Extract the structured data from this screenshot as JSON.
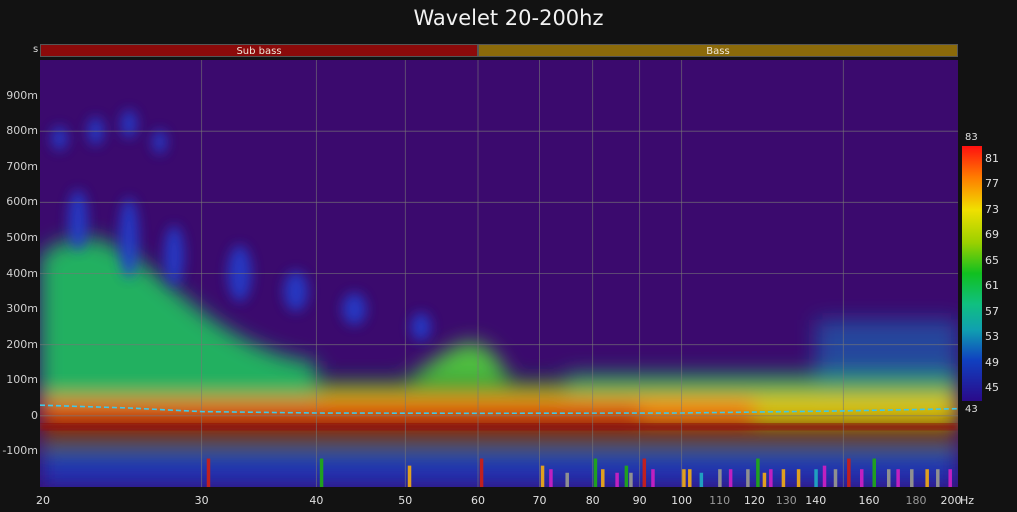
{
  "title": "Wavelet 20-200hz",
  "bands": {
    "s_label": "s",
    "items": [
      {
        "label": "Sub bass",
        "from": 20,
        "to": 60,
        "color": "#8b0a0a"
      },
      {
        "label": "Bass",
        "from": 60,
        "to": 200,
        "color": "#8b6a0a"
      }
    ]
  },
  "colorbar": {
    "max_label": "83",
    "min_label": "43",
    "ticks": [
      "81",
      "77",
      "73",
      "69",
      "65",
      "61",
      "57",
      "53",
      "49",
      "45"
    ],
    "range": [
      43,
      83
    ]
  },
  "chart_data": {
    "type": "heatmap",
    "title": "Wavelet 20-200hz",
    "xscale": "log",
    "x_unit": "Hz",
    "xlim": [
      20,
      200
    ],
    "x_ticks": [
      {
        "value": 20,
        "label": "20",
        "minor": false
      },
      {
        "value": 30,
        "label": "30",
        "minor": false
      },
      {
        "value": 40,
        "label": "40",
        "minor": false
      },
      {
        "value": 50,
        "label": "50",
        "minor": false
      },
      {
        "value": 60,
        "label": "60",
        "minor": false
      },
      {
        "value": 70,
        "label": "70",
        "minor": false
      },
      {
        "value": 80,
        "label": "80",
        "minor": false
      },
      {
        "value": 90,
        "label": "90",
        "minor": false
      },
      {
        "value": 100,
        "label": "100",
        "minor": false
      },
      {
        "value": 110,
        "label": "110",
        "minor": true
      },
      {
        "value": 120,
        "label": "120",
        "minor": false
      },
      {
        "value": 130,
        "label": "130",
        "minor": true
      },
      {
        "value": 140,
        "label": "140",
        "minor": false
      },
      {
        "value": 160,
        "label": "160",
        "minor": false
      },
      {
        "value": 180,
        "label": "180",
        "minor": true
      },
      {
        "value": 200,
        "label": "200",
        "minor": false
      }
    ],
    "ylim": [
      -0.2,
      1.0
    ],
    "y_ticks": [
      {
        "value": 0.9,
        "label": "900m"
      },
      {
        "value": 0.8,
        "label": "800m"
      },
      {
        "value": 0.7,
        "label": "700m"
      },
      {
        "value": 0.6,
        "label": "600m"
      },
      {
        "value": 0.5,
        "label": "500m"
      },
      {
        "value": 0.4,
        "label": "400m"
      },
      {
        "value": 0.3,
        "label": "300m"
      },
      {
        "value": 0.2,
        "label": "200m"
      },
      {
        "value": 0.1,
        "label": "100m"
      },
      {
        "value": 0.0,
        "label": "0"
      },
      {
        "value": -0.1,
        "label": "-100m"
      }
    ],
    "gridlines_x": [
      30,
      40,
      50,
      60,
      70,
      80,
      90,
      100,
      150
    ],
    "gridlines_y": [
      0.8,
      0.6,
      0.4,
      0.2,
      0.0
    ],
    "grid": true,
    "colorscale_db": [
      43,
      83
    ],
    "ridge_line": {
      "color": "#40c8e8",
      "style": "dashed",
      "points": [
        [
          20,
          0.03
        ],
        [
          25,
          0.022
        ],
        [
          30,
          0.012
        ],
        [
          40,
          0.008
        ],
        [
          60,
          0.007
        ],
        [
          100,
          0.008
        ],
        [
          150,
          0.014
        ],
        [
          200,
          0.02
        ]
      ]
    },
    "peak_markers": [
      {
        "x": 30.5,
        "value": 0.08,
        "color": "#c02020"
      },
      {
        "x": 40.5,
        "value": 0.08,
        "color": "#20a020"
      },
      {
        "x": 50.5,
        "value": 0.06,
        "color": "#e0a020"
      },
      {
        "x": 60.5,
        "value": 0.08,
        "color": "#c02020"
      },
      {
        "x": 70.5,
        "value": 0.06,
        "color": "#e0a020"
      },
      {
        "x": 72,
        "value": 0.05,
        "color": "#c020c0"
      },
      {
        "x": 75,
        "value": 0.04,
        "color": "#909090"
      },
      {
        "x": 80.5,
        "value": 0.08,
        "color": "#20a020"
      },
      {
        "x": 82,
        "value": 0.05,
        "color": "#e0a020"
      },
      {
        "x": 85,
        "value": 0.04,
        "color": "#c020c0"
      },
      {
        "x": 87,
        "value": 0.06,
        "color": "#20a020"
      },
      {
        "x": 88,
        "value": 0.04,
        "color": "#909090"
      },
      {
        "x": 91,
        "value": 0.08,
        "color": "#c02020"
      },
      {
        "x": 93,
        "value": 0.05,
        "color": "#c020c0"
      },
      {
        "x": 100.5,
        "value": 0.05,
        "color": "#e0a020"
      },
      {
        "x": 102,
        "value": 0.05,
        "color": "#e0a020"
      },
      {
        "x": 105,
        "value": 0.04,
        "color": "#20a0c0"
      },
      {
        "x": 110,
        "value": 0.05,
        "color": "#909090"
      },
      {
        "x": 113,
        "value": 0.05,
        "color": "#c020c0"
      },
      {
        "x": 118,
        "value": 0.05,
        "color": "#909090"
      },
      {
        "x": 121,
        "value": 0.08,
        "color": "#20a020"
      },
      {
        "x": 123,
        "value": 0.04,
        "color": "#e0a020"
      },
      {
        "x": 125,
        "value": 0.05,
        "color": "#c020c0"
      },
      {
        "x": 129,
        "value": 0.05,
        "color": "#e0a020"
      },
      {
        "x": 134,
        "value": 0.05,
        "color": "#e0a020"
      },
      {
        "x": 140,
        "value": 0.05,
        "color": "#20a0c0"
      },
      {
        "x": 143,
        "value": 0.06,
        "color": "#c020c0"
      },
      {
        "x": 147,
        "value": 0.05,
        "color": "#909090"
      },
      {
        "x": 152,
        "value": 0.08,
        "color": "#c02020"
      },
      {
        "x": 157,
        "value": 0.05,
        "color": "#c020c0"
      },
      {
        "x": 162,
        "value": 0.08,
        "color": "#20a020"
      },
      {
        "x": 168,
        "value": 0.05,
        "color": "#909090"
      },
      {
        "x": 172,
        "value": 0.05,
        "color": "#c020c0"
      },
      {
        "x": 178,
        "value": 0.05,
        "color": "#909090"
      },
      {
        "x": 185,
        "value": 0.05,
        "color": "#e0a020"
      },
      {
        "x": 190,
        "value": 0.05,
        "color": "#909090"
      },
      {
        "x": 196,
        "value": 0.05,
        "color": "#c020c0"
      }
    ]
  }
}
